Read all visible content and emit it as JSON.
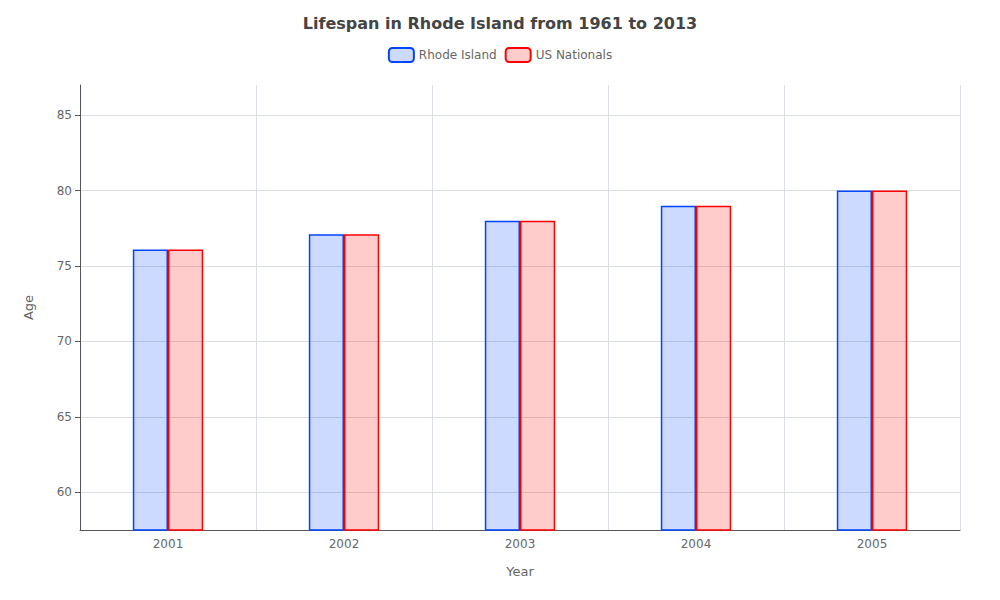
{
  "chart_data": {
    "type": "bar",
    "title": "Lifespan in Rhode Island from 1961 to 2013",
    "x_label": "Year",
    "y_label": "Age",
    "categories": [
      "2001",
      "2002",
      "2003",
      "2004",
      "2005"
    ],
    "series": [
      {
        "name": "Rhode Island",
        "color": "#0044ff",
        "values": [
          76.1,
          77.1,
          78.0,
          79.0,
          80.0
        ]
      },
      {
        "name": "US Nationals",
        "color": "#ff0000",
        "values": [
          76.1,
          77.1,
          78.0,
          79.0,
          80.0
        ]
      }
    ],
    "ylim": [
      57.5,
      87
    ],
    "yticks": [
      60,
      65,
      70,
      75,
      80,
      85
    ],
    "grid": true,
    "legend": "top"
  }
}
